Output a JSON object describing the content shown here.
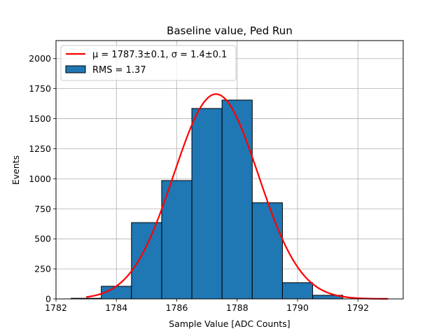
{
  "chart_data": {
    "type": "bar",
    "title": "Baseline value, Ped Run",
    "xlabel": "Sample Value [ADC Counts]",
    "ylabel": "Events",
    "xlim": [
      1782,
      1793.5
    ],
    "ylim": [
      0,
      2150
    ],
    "x_ticks": [
      1782,
      1784,
      1786,
      1788,
      1790,
      1792
    ],
    "y_ticks": [
      0,
      250,
      500,
      750,
      1000,
      1250,
      1500,
      1750,
      2000
    ],
    "grid": true,
    "legend_position": "upper-left",
    "bar_color": "#1f77b4",
    "fit_color": "#ff0000",
    "bins": [
      {
        "x0": 1782.5,
        "x1": 1783.5,
        "value": 5
      },
      {
        "x0": 1783.5,
        "x1": 1784.5,
        "value": 105
      },
      {
        "x0": 1784.5,
        "x1": 1785.5,
        "value": 635
      },
      {
        "x0": 1785.5,
        "x1": 1786.5,
        "value": 985
      },
      {
        "x0": 1786.5,
        "x1": 1787.5,
        "value": 1585
      },
      {
        "x0": 1787.5,
        "x1": 1788.5,
        "value": 1655
      },
      {
        "x0": 1788.5,
        "x1": 1789.5,
        "value": 800
      },
      {
        "x0": 1789.5,
        "x1": 1790.5,
        "value": 135
      },
      {
        "x0": 1790.5,
        "x1": 1791.5,
        "value": 30
      }
    ],
    "fit": {
      "mu": 1787.3,
      "sigma": 1.4,
      "amplitude": 1705,
      "x_range": [
        1783,
        1793
      ]
    },
    "legend": {
      "fit_label": "μ = 1787.3±0.1, σ = 1.4±0.1",
      "hist_label": "RMS = 1.37"
    }
  }
}
